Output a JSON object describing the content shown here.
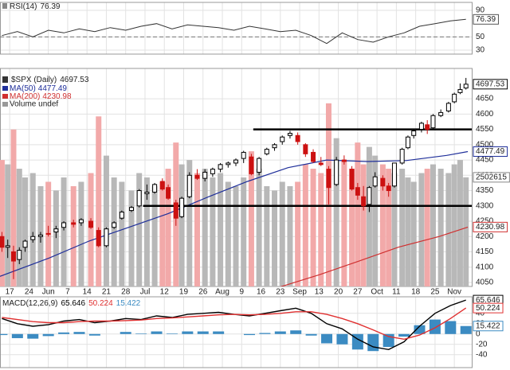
{
  "chart_data": [
    {
      "type": "line",
      "title": "RSI(14)",
      "x": [
        -0.4,
        0.4,
        1.2,
        2.0,
        2.8,
        3.6,
        4.4,
        5.2,
        6.0,
        6.8,
        7.6,
        8.4,
        9.2,
        10.0,
        10.8,
        11.6,
        12.4,
        13.2,
        14.0,
        14.8,
        15.6,
        16.4,
        17.2,
        18.0,
        18.8,
        19.6,
        20.4,
        21.2,
        22.0,
        22.8,
        23.6
      ],
      "series": [
        {
          "color": "#333333",
          "values": [
            52,
            58,
            50,
            60,
            56,
            62,
            58,
            64,
            60,
            66,
            70,
            62,
            68,
            66,
            64,
            60,
            66,
            62,
            58,
            60,
            52,
            40,
            56,
            46,
            42,
            50,
            56,
            66,
            70,
            74,
            76.39
          ]
        }
      ],
      "xlim": [
        -0.5,
        23.9
      ],
      "ylim": [
        24,
        102
      ],
      "yticks": [
        90,
        50,
        30
      ],
      "ref_line": 50,
      "grid": true
    },
    {
      "type": "candlestick",
      "title": "$SPX (Daily)",
      "x": [
        -0.4,
        -0.1,
        0.2,
        0.5,
        0.8,
        1.2,
        1.6,
        2.0,
        2.4,
        2.8,
        3.3,
        3.7,
        4.2,
        4.6,
        5.0,
        5.4,
        5.8,
        6.3,
        6.7,
        7.1,
        7.5,
        7.9,
        8.2,
        8.6,
        8.9,
        9.3,
        9.7,
        10.1,
        10.5,
        10.9,
        11.3,
        11.7,
        12.1,
        12.5,
        12.9,
        13.3,
        13.7,
        14.1,
        14.5,
        14.9,
        15.3,
        15.7,
        16.1,
        16.5,
        16.9,
        17.3,
        17.7,
        18.0,
        18.3,
        18.6,
        18.9,
        19.3,
        19.6,
        19.9,
        20.3,
        20.6,
        20.9,
        21.3,
        21.6,
        21.9,
        22.3,
        22.7,
        23.0,
        23.3,
        23.6
      ],
      "open": [
        4200,
        4165,
        4150,
        4125,
        4165,
        4190,
        4200,
        4210,
        4215,
        4230,
        4245,
        4245,
        4250,
        4220,
        4170,
        4230,
        4260,
        4285,
        4300,
        4340,
        4345,
        4380,
        4360,
        4310,
        4265,
        4330,
        4400,
        4390,
        4405,
        4420,
        4435,
        4440,
        4455,
        4460,
        4410,
        4470,
        4490,
        4510,
        4530,
        4530,
        4500,
        4475,
        4440,
        4420,
        4370,
        4450,
        4420,
        4360,
        4330,
        4305,
        4365,
        4390,
        4365,
        4365,
        4440,
        4490,
        4530,
        4550,
        4565,
        4555,
        4595,
        4610,
        4640,
        4670,
        4685
      ],
      "high": [
        4215,
        4190,
        4170,
        4165,
        4190,
        4215,
        4215,
        4235,
        4235,
        4250,
        4255,
        4260,
        4260,
        4230,
        4230,
        4250,
        4285,
        4300,
        4355,
        4370,
        4375,
        4390,
        4370,
        4320,
        4330,
        4410,
        4420,
        4420,
        4425,
        4440,
        4445,
        4455,
        4480,
        4470,
        4460,
        4490,
        4505,
        4530,
        4545,
        4540,
        4505,
        4485,
        4460,
        4430,
        4460,
        4465,
        4430,
        4375,
        4365,
        4365,
        4410,
        4400,
        4375,
        4440,
        4490,
        4530,
        4550,
        4575,
        4580,
        4600,
        4615,
        4640,
        4670,
        4700,
        4718
      ],
      "low": [
        4150,
        4130,
        4061,
        4110,
        4150,
        4180,
        4180,
        4200,
        4195,
        4220,
        4230,
        4235,
        4225,
        4165,
        4165,
        4225,
        4255,
        4280,
        4295,
        4320,
        4340,
        4350,
        4320,
        4235,
        4260,
        4325,
        4385,
        4380,
        4395,
        4410,
        4425,
        4430,
        4440,
        4400,
        4400,
        4465,
        4480,
        4500,
        4520,
        4500,
        4460,
        4440,
        4430,
        4305,
        4365,
        4435,
        4350,
        4320,
        4285,
        4280,
        4360,
        4350,
        4330,
        4360,
        4435,
        4485,
        4520,
        4540,
        4535,
        4550,
        4590,
        4605,
        4635,
        4665,
        4680
      ],
      "close": [
        4165,
        4170,
        4120,
        4155,
        4185,
        4200,
        4205,
        4208,
        4225,
        4245,
        4240,
        4255,
        4230,
        4170,
        4225,
        4245,
        4280,
        4295,
        4350,
        4345,
        4370,
        4355,
        4325,
        4260,
        4325,
        4400,
        4390,
        4410,
        4420,
        4435,
        4440,
        4450,
        4475,
        4405,
        4455,
        4485,
        4500,
        4525,
        4537,
        4510,
        4470,
        4445,
        4435,
        4360,
        4450,
        4445,
        4355,
        4335,
        4300,
        4360,
        4395,
        4365,
        4350,
        4440,
        4485,
        4525,
        4545,
        4570,
        4550,
        4595,
        4605,
        4635,
        4665,
        4680,
        4697.53
      ],
      "up_color": "#000000",
      "down_color": "#cc1111",
      "xlim": [
        -0.5,
        23.9
      ],
      "xticks": [
        {
          "value": 0,
          "label": "17"
        },
        {
          "value": 1,
          "label": "24"
        },
        {
          "value": 2,
          "label": "Jun"
        },
        {
          "value": 3,
          "label": "7"
        },
        {
          "value": 4,
          "label": "14"
        },
        {
          "value": 5,
          "label": "21"
        },
        {
          "value": 6,
          "label": "28"
        },
        {
          "value": 7,
          "label": "Jul"
        },
        {
          "value": 8,
          "label": "12"
        },
        {
          "value": 9,
          "label": "19"
        },
        {
          "value": 10,
          "label": "26"
        },
        {
          "value": 11,
          "label": "Aug"
        },
        {
          "value": 12,
          "label": "9"
        },
        {
          "value": 13,
          "label": "16"
        },
        {
          "value": 14,
          "label": "23"
        },
        {
          "value": 15,
          "label": "Sep"
        },
        {
          "value": 16,
          "label": "13"
        },
        {
          "value": 17,
          "label": "20"
        },
        {
          "value": 18,
          "label": "27"
        },
        {
          "value": 19,
          "label": "Oct"
        },
        {
          "value": 20,
          "label": "11"
        },
        {
          "value": 21,
          "label": "18"
        },
        {
          "value": 22,
          "label": "25"
        },
        {
          "value": 23,
          "label": "Nov"
        }
      ],
      "ylim": [
        4037,
        4749
      ],
      "yticks": [
        4050,
        4100,
        4150,
        4200,
        4250,
        4300,
        4350,
        4400,
        4450,
        4500,
        4550,
        4600,
        4650
      ],
      "grid": true,
      "lines": [
        {
          "name": "MA(50)",
          "color": "#1f2f9a",
          "x": [
            -0.5,
            2.05,
            4.1,
            6.16,
            8.2,
            10.3,
            12.3,
            14.4,
            16.4,
            18.5,
            20.5,
            22.6,
            23.7
          ],
          "values": [
            4070,
            4130,
            4185,
            4230,
            4275,
            4330,
            4380,
            4425,
            4450,
            4445,
            4448,
            4465,
            4477.49
          ]
        },
        {
          "name": "MA(200)",
          "color": "#d03030",
          "x": [
            13.96,
            16.0,
            18.07,
            20.1,
            22.2,
            23.7
          ],
          "values": [
            4035,
            4075,
            4120,
            4165,
            4200,
            4230.98
          ]
        }
      ],
      "volume": {
        "name": "Volume undef",
        "up_color": "#b8b8b8",
        "down_color": "#f2a9a9",
        "vlim": [
          0,
          5000000
        ],
        "values": [
          2900000,
          2800000,
          3600000,
          2700000,
          2500000,
          2600000,
          2300000,
          2400000,
          2200000,
          2500000,
          2300000,
          2400000,
          2600000,
          3900000,
          3000000,
          2500000,
          2400000,
          2200000,
          2600000,
          2500000,
          2300000,
          2400000,
          2700000,
          3300000,
          2800000,
          2900000,
          2600000,
          2700000,
          2500000,
          2600000,
          2400000,
          2300000,
          2500000,
          3100000,
          2700000,
          2300000,
          2200000,
          2400000,
          2300000,
          2400000,
          2800000,
          2700000,
          2600000,
          4200000,
          3400000,
          2900000,
          2700000,
          3300000,
          2800000,
          3200000,
          3000000,
          2800000,
          2700000,
          2600000,
          2700000,
          2500000,
          2400000,
          2600000,
          2700000,
          2800000,
          2700000,
          2600000,
          2800000,
          2900000,
          2502615
        ]
      },
      "levels": [
        {
          "value": 4550,
          "x_start": 12.6
        },
        {
          "value": 4300,
          "x_start": 6.9
        }
      ]
    },
    {
      "type": "combo",
      "title": "MACD(12,26,9)",
      "x": [
        -0.4,
        0.4,
        1.2,
        2.0,
        2.8,
        3.6,
        4.4,
        5.2,
        6.0,
        6.8,
        7.6,
        8.4,
        9.2,
        10.0,
        10.8,
        11.6,
        12.4,
        13.2,
        14.0,
        14.8,
        15.6,
        16.4,
        17.2,
        18.0,
        18.8,
        19.6,
        20.4,
        21.2,
        22.0,
        22.8,
        23.6
      ],
      "series": [
        {
          "type": "bar",
          "color": "#3b8bc2",
          "values": [
            -2,
            -8,
            -9,
            -4,
            3,
            4,
            -3,
            0,
            4,
            1,
            5,
            1,
            5,
            5,
            5,
            0,
            -2,
            2,
            5,
            7,
            -3,
            -18,
            -20,
            -30,
            -33,
            -25,
            -5,
            17,
            28,
            25,
            15.422
          ]
        },
        {
          "type": "line",
          "color": "#000000",
          "values": [
            30,
            20,
            15,
            18,
            25,
            28,
            22,
            25,
            30,
            28,
            35,
            32,
            38,
            40,
            42,
            38,
            35,
            40,
            45,
            50,
            40,
            20,
            10,
            -10,
            -25,
            -30,
            -15,
            15,
            40,
            55,
            65.646
          ]
        },
        {
          "type": "line",
          "color": "#e03030",
          "values": [
            32,
            28,
            24,
            22,
            22,
            24,
            25,
            25,
            26,
            27,
            30,
            31,
            33,
            35,
            37,
            38,
            37,
            38,
            40,
            43,
            43,
            38,
            30,
            20,
            8,
            -5,
            -10,
            -2,
            12,
            30,
            50.224
          ]
        }
      ],
      "xlim": [
        -0.5,
        23.9
      ],
      "ylim": [
        -65,
        72
      ],
      "yticks": [
        -40,
        -20,
        0,
        20,
        40
      ],
      "grid": true
    }
  ]
}
